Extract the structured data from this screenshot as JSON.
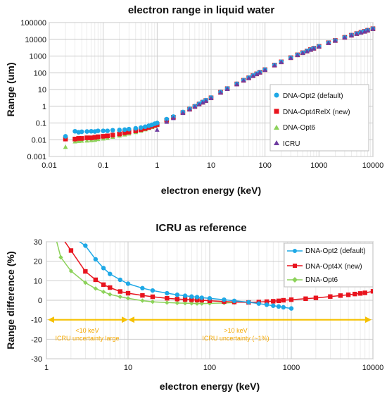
{
  "colors": {
    "opt2": "#1ea8e6",
    "opt4": "#e8141e",
    "opt6": "#8cd25a",
    "icru": "#6e3ca0",
    "arrow": "#f5c000",
    "grid": "#c8c8c8"
  },
  "chart_data": [
    {
      "type": "scatter",
      "title": "electron range in liquid water",
      "xlabel": "electron energy (keV)",
      "ylabel": "Range (um)",
      "xscale": "log",
      "yscale": "log",
      "xlim": [
        0.01,
        10000
      ],
      "ylim": [
        0.001,
        100000
      ],
      "x_ticks": [
        "0.01",
        "0.1",
        "1",
        "10",
        "100",
        "1000",
        "10000"
      ],
      "y_ticks": [
        "0.001",
        "0.01",
        "0.1",
        "1",
        "10",
        "100",
        "1000",
        "10000",
        "100000"
      ],
      "grid": true,
      "legend_position": "right",
      "series": [
        {
          "name": "DNA-Opt2 (default)",
          "marker": "circle",
          "x": [
            0.02,
            0.03,
            0.035,
            0.04,
            0.05,
            0.06,
            0.07,
            0.08,
            0.1,
            0.12,
            0.15,
            0.2,
            0.25,
            0.3,
            0.4,
            0.5,
            0.6,
            0.7,
            0.8,
            0.9,
            1,
            1.5,
            2,
            3,
            4,
            5,
            6,
            7,
            8,
            10,
            15,
            20,
            30,
            40,
            50,
            60,
            70,
            80,
            100,
            150,
            200,
            300,
            400,
            500,
            600,
            700,
            800,
            1000,
            1500,
            2000,
            3000,
            4000,
            5000,
            6000,
            7000,
            8000,
            10000
          ],
          "y": [
            0.016,
            0.032,
            0.028,
            0.03,
            0.031,
            0.032,
            0.031,
            0.034,
            0.034,
            0.034,
            0.037,
            0.038,
            0.04,
            0.043,
            0.048,
            0.053,
            0.06,
            0.068,
            0.078,
            0.09,
            0.1,
            0.17,
            0.24,
            0.45,
            0.7,
            1.0,
            1.4,
            1.8,
            2.3,
            3.3,
            7,
            11.5,
            22,
            36,
            51,
            68,
            87,
            108,
            155,
            290,
            450,
            800,
            1180,
            1580,
            2000,
            2450,
            2900,
            3800,
            6200,
            8500,
            13000,
            17500,
            22000,
            26000,
            30000,
            34500,
            43000
          ]
        },
        {
          "name": "DNA-Opt4RelX (new)",
          "marker": "square",
          "x": [
            0.02,
            0.03,
            0.035,
            0.04,
            0.05,
            0.06,
            0.07,
            0.08,
            0.1,
            0.12,
            0.15,
            0.2,
            0.25,
            0.3,
            0.4,
            0.5,
            0.6,
            0.7,
            0.8,
            0.9,
            1,
            1.5,
            2,
            3,
            4,
            5,
            6,
            7,
            8,
            10,
            15,
            20,
            30,
            40,
            50,
            60,
            70,
            80,
            100,
            150,
            200,
            300,
            400,
            500,
            600,
            700,
            800,
            1000,
            1500,
            2000,
            3000,
            4000,
            5000,
            6000,
            7000,
            8000,
            10000
          ],
          "y": [
            0.011,
            0.011,
            0.012,
            0.012,
            0.013,
            0.013,
            0.014,
            0.015,
            0.016,
            0.017,
            0.019,
            0.022,
            0.026,
            0.029,
            0.034,
            0.04,
            0.047,
            0.055,
            0.064,
            0.073,
            0.082,
            0.15,
            0.22,
            0.42,
            0.67,
            0.97,
            1.35,
            1.75,
            2.2,
            3.2,
            6.8,
            11.3,
            21.5,
            35.5,
            50,
            67,
            86,
            107,
            153,
            287,
            447,
            795,
            1175,
            1575,
            1995,
            2440,
            2890,
            3790,
            6190,
            8490,
            12990,
            17490,
            21990,
            25990,
            29990,
            34490,
            42990
          ]
        },
        {
          "name": "DNA-Opt6",
          "marker": "triangle",
          "x": [
            0.02,
            0.03,
            0.035,
            0.04,
            0.05,
            0.06,
            0.07,
            0.08,
            0.1,
            0.12,
            0.15,
            0.2,
            0.25,
            0.3,
            0.4,
            0.5,
            0.6,
            0.7,
            0.8,
            0.9,
            1,
            1.5,
            2,
            3,
            4,
            5,
            6,
            7,
            8,
            10,
            15,
            20,
            30,
            40,
            50,
            60,
            70,
            80,
            100,
            150,
            200,
            300,
            400,
            500,
            600,
            700,
            800,
            1000,
            1500,
            2000,
            3000,
            4000,
            5000,
            6000,
            7000,
            8000,
            10000
          ],
          "y": [
            0.0038,
            0.008,
            0.0085,
            0.0088,
            0.009,
            0.0095,
            0.01,
            0.011,
            0.012,
            0.013,
            0.015,
            0.018,
            0.021,
            0.024,
            0.029,
            0.035,
            0.042,
            0.05,
            0.058,
            0.067,
            0.076,
            0.14,
            0.21,
            0.41,
            0.66,
            0.96,
            1.33,
            1.73,
            2.18,
            3.17,
            6.75,
            11.25,
            21.4,
            35.3,
            49.8,
            66.8,
            85.8,
            106.8,
            152.8,
            286.8,
            446.8,
            794.8,
            1174.8,
            1574.8,
            1994.8,
            2439.8,
            2889.8,
            3789.8,
            6189.8,
            8489.8,
            12989.8,
            17489.8,
            21989.8,
            25989.8,
            29989.8,
            34489.8,
            42989.8
          ]
        },
        {
          "name": "ICRU",
          "marker": "triangle",
          "x": [
            1,
            1.5,
            2,
            3,
            4,
            5,
            6,
            7,
            8,
            10,
            15,
            20,
            30,
            40,
            50,
            60,
            70,
            80,
            100,
            150,
            200,
            300,
            400,
            500,
            600,
            700,
            800,
            1000,
            1500,
            2000,
            3000,
            4000,
            5000,
            6000,
            7000,
            8000,
            10000
          ],
          "y": [
            0.04,
            0.12,
            0.2,
            0.4,
            0.65,
            0.95,
            1.3,
            1.7,
            2.15,
            3.1,
            6.6,
            11,
            21,
            35,
            49.5,
            66.5,
            85.5,
            106.5,
            152.5,
            286.5,
            446.5,
            794.5,
            1174.5,
            1574.5,
            1994.5,
            2439.5,
            2889.5,
            3789.5,
            6189.5,
            8489.5,
            12989.5,
            17489.5,
            21989.5,
            25989.5,
            29989.5,
            34489.5,
            42989.5
          ]
        }
      ]
    },
    {
      "type": "line",
      "title": "ICRU as reference",
      "xlabel": "electron energy (keV)",
      "ylabel": "Range difference (%)",
      "xscale": "log",
      "xlim": [
        1,
        10000
      ],
      "ylim": [
        -30,
        30
      ],
      "x_ticks": [
        "1",
        "10",
        "100",
        "1000",
        "10000"
      ],
      "y_ticks": [
        "30",
        "20",
        "10",
        "0",
        "-10",
        "-20",
        "-30"
      ],
      "grid": true,
      "legend_position": "top-right",
      "series": [
        {
          "name": "DNA-Opt2 (default)",
          "marker": "circle",
          "x": [
            2,
            3,
            4,
            5,
            6,
            8,
            10,
            15,
            20,
            30,
            40,
            50,
            60,
            70,
            80,
            100,
            150,
            200,
            300,
            400,
            500,
            600,
            700,
            800,
            1000
          ],
          "y": [
            33,
            28,
            21,
            16.5,
            13.5,
            10.5,
            8.5,
            6.2,
            5,
            3.6,
            2.8,
            2.3,
            1.9,
            1.6,
            1.3,
            1,
            0.3,
            -0.3,
            -1,
            -1.7,
            -2.3,
            -2.8,
            -3.2,
            -3.6,
            -4.2
          ]
        },
        {
          "name": "DNA-Opt4X (new)",
          "marker": "square",
          "x": [
            1.5,
            2,
            3,
            4,
            5,
            6,
            8,
            10,
            15,
            20,
            30,
            40,
            50,
            60,
            70,
            80,
            100,
            150,
            200,
            300,
            400,
            500,
            600,
            700,
            800,
            1000,
            1500,
            2000,
            3000,
            4000,
            5000,
            6000,
            7000,
            8000,
            10000
          ],
          "y": [
            33,
            25.5,
            14.8,
            10.5,
            8,
            6.5,
            4.5,
            3.6,
            2.5,
            1.8,
            1,
            0.6,
            0.4,
            0.2,
            0.1,
            0,
            -0.3,
            -0.7,
            -0.9,
            -1.1,
            -0.9,
            -0.7,
            -0.5,
            -0.3,
            0,
            0.3,
            0.8,
            1.2,
            1.9,
            2.4,
            2.8,
            3.2,
            3.5,
            3.8,
            4.6
          ]
        },
        {
          "name": "DNA-Opt6",
          "marker": "diamond",
          "x": [
            1.3,
            1.5,
            2,
            3,
            4,
            5,
            6,
            8,
            10,
            15,
            20,
            30,
            40,
            50,
            60,
            70,
            80,
            100,
            150,
            200
          ],
          "y": [
            32,
            22,
            15,
            9,
            6,
            4.3,
            3,
            1.8,
            1,
            -0.2,
            -0.8,
            -1.2,
            -1.4,
            -1.5,
            -1.6,
            -1.7,
            -1.7,
            -1.6,
            -1.4,
            -1.2
          ]
        }
      ],
      "annotations": [
        {
          "text_lines": [
            "<10 keV",
            "ICRU uncertainty large"
          ]
        },
        {
          "text_lines": [
            ">10 keV",
            "ICRU uncertainty (~1%)"
          ]
        }
      ]
    }
  ]
}
